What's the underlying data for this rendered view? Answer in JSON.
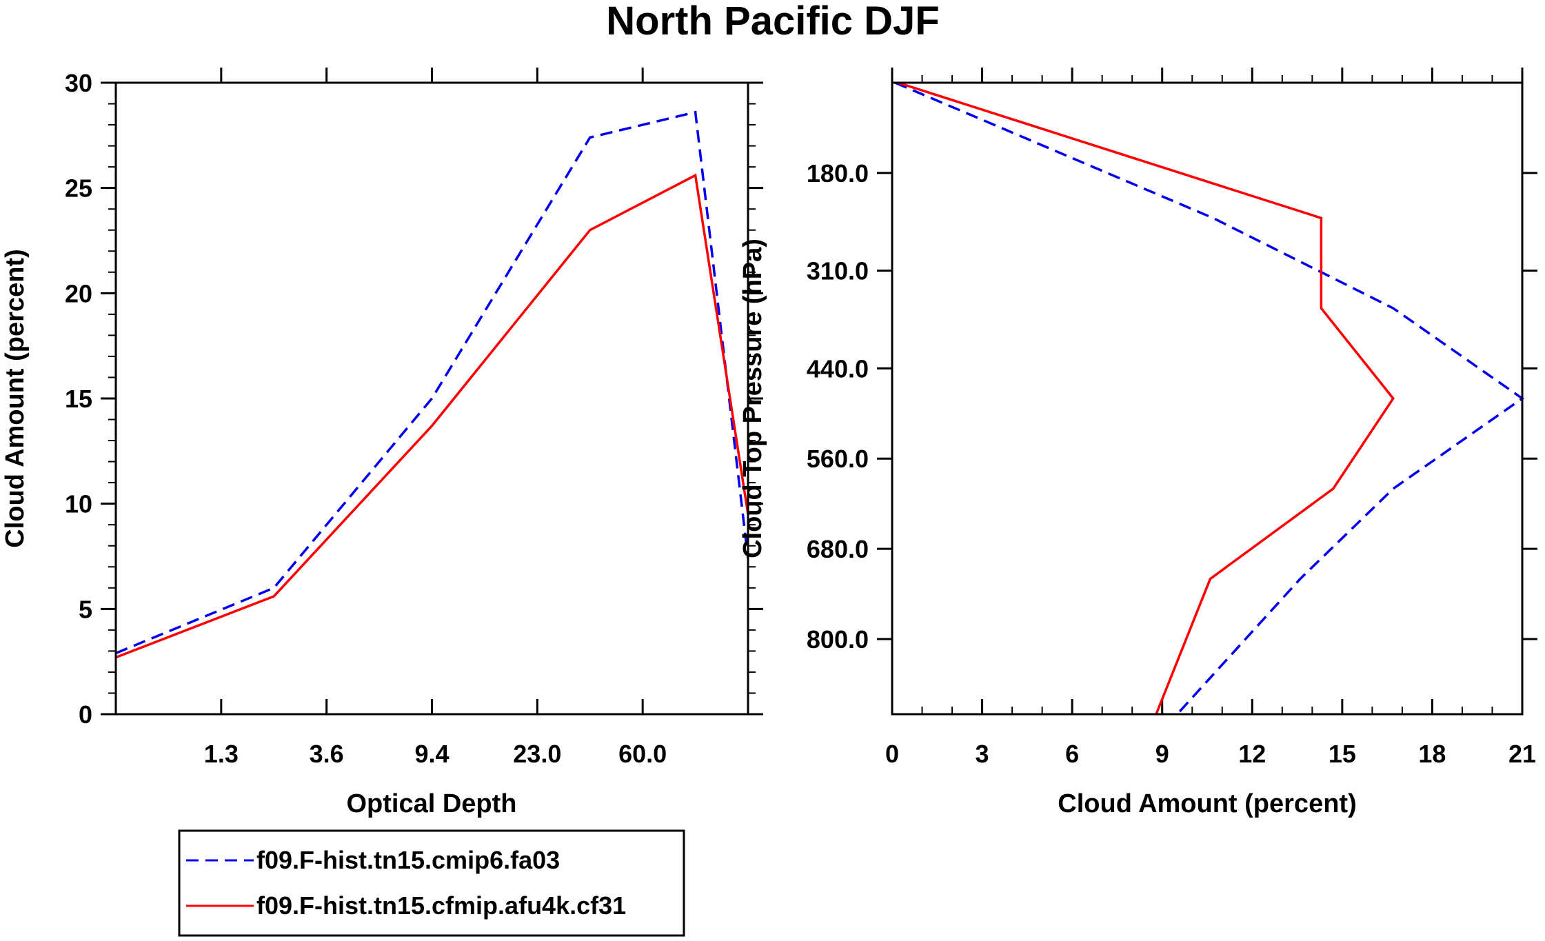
{
  "figure_title": "North Pacific DJF",
  "colors": {
    "blue": "#0000ee",
    "red": "#ff0000",
    "axis": "#000000"
  },
  "legend": {
    "entries": [
      {
        "label": "f09.F-hist.tn15.cmip6.fa03",
        "color": "#0000ee",
        "dash": "dashed"
      },
      {
        "label": "f09.F-hist.tn15.cfmip.afu4k.cf31",
        "color": "#ff0000",
        "dash": "solid"
      }
    ]
  },
  "chart_data": [
    {
      "type": "line",
      "panel": "left",
      "xlabel": "Optical Depth",
      "ylabel": "Cloud Amount (percent)",
      "x_index": [
        0,
        1,
        2,
        3,
        4,
        5
      ],
      "xtick_labels": [
        "1.3",
        "3.6",
        "9.4",
        "23.0",
        "60.0"
      ],
      "xlim_index": [
        -0.5,
        5.5
      ],
      "ylim": [
        0,
        30
      ],
      "yticks": [
        0,
        5,
        10,
        15,
        20,
        25,
        30
      ],
      "ytick_labels": [
        "0",
        "5",
        "10",
        "15",
        "20",
        "25",
        "30"
      ],
      "series": [
        {
          "name": "f09.F-hist.tn15.cmip6.fa03",
          "color": "#0000ee",
          "dash": "dashed",
          "x": [
            -0.5,
            1.0,
            2.5,
            4.0,
            5.0,
            5.5
          ],
          "y": [
            2.9,
            6.0,
            15.0,
            27.4,
            28.6,
            7.4
          ]
        },
        {
          "name": "f09.F-hist.tn15.cfmip.afu4k.cf31",
          "color": "#ff0000",
          "dash": "solid",
          "x": [
            -0.5,
            1.0,
            2.5,
            4.0,
            5.0,
            5.5
          ],
          "y": [
            2.7,
            5.6,
            13.7,
            23.0,
            25.6,
            9.5
          ]
        }
      ]
    },
    {
      "type": "line",
      "panel": "right",
      "xlabel": "Cloud Amount (percent)",
      "ylabel": "Cloud Top Pressure (hPa)",
      "xlim": [
        0,
        21
      ],
      "xticks": [
        0,
        3,
        6,
        9,
        12,
        15,
        18,
        21
      ],
      "xtick_labels": [
        "0",
        "3",
        "6",
        "9",
        "12",
        "15",
        "18",
        "21"
      ],
      "ylim": [
        60,
        900
      ],
      "ytick_values": [
        180,
        310,
        440,
        560,
        680,
        800
      ],
      "ytick_labels": [
        "180.0",
        "310.0",
        "440.0",
        "560.0",
        "680.0",
        "800.0"
      ],
      "series": [
        {
          "name": "f09.F-hist.tn15.cmip6.fa03",
          "color": "#0000ee",
          "dash": "dashed",
          "x": [
            0.1,
            10.7,
            16.7,
            21.0,
            16.7,
            13.6,
            9.5
          ],
          "y": [
            60,
            240,
            360,
            480,
            600,
            720,
            900
          ]
        },
        {
          "name": "f09.F-hist.tn15.cfmip.afu4k.cf31",
          "color": "#ff0000",
          "dash": "solid",
          "x": [
            0.2,
            14.3,
            14.3,
            16.7,
            14.7,
            10.6,
            8.8
          ],
          "y": [
            60,
            240,
            360,
            480,
            600,
            720,
            900
          ]
        }
      ]
    }
  ]
}
